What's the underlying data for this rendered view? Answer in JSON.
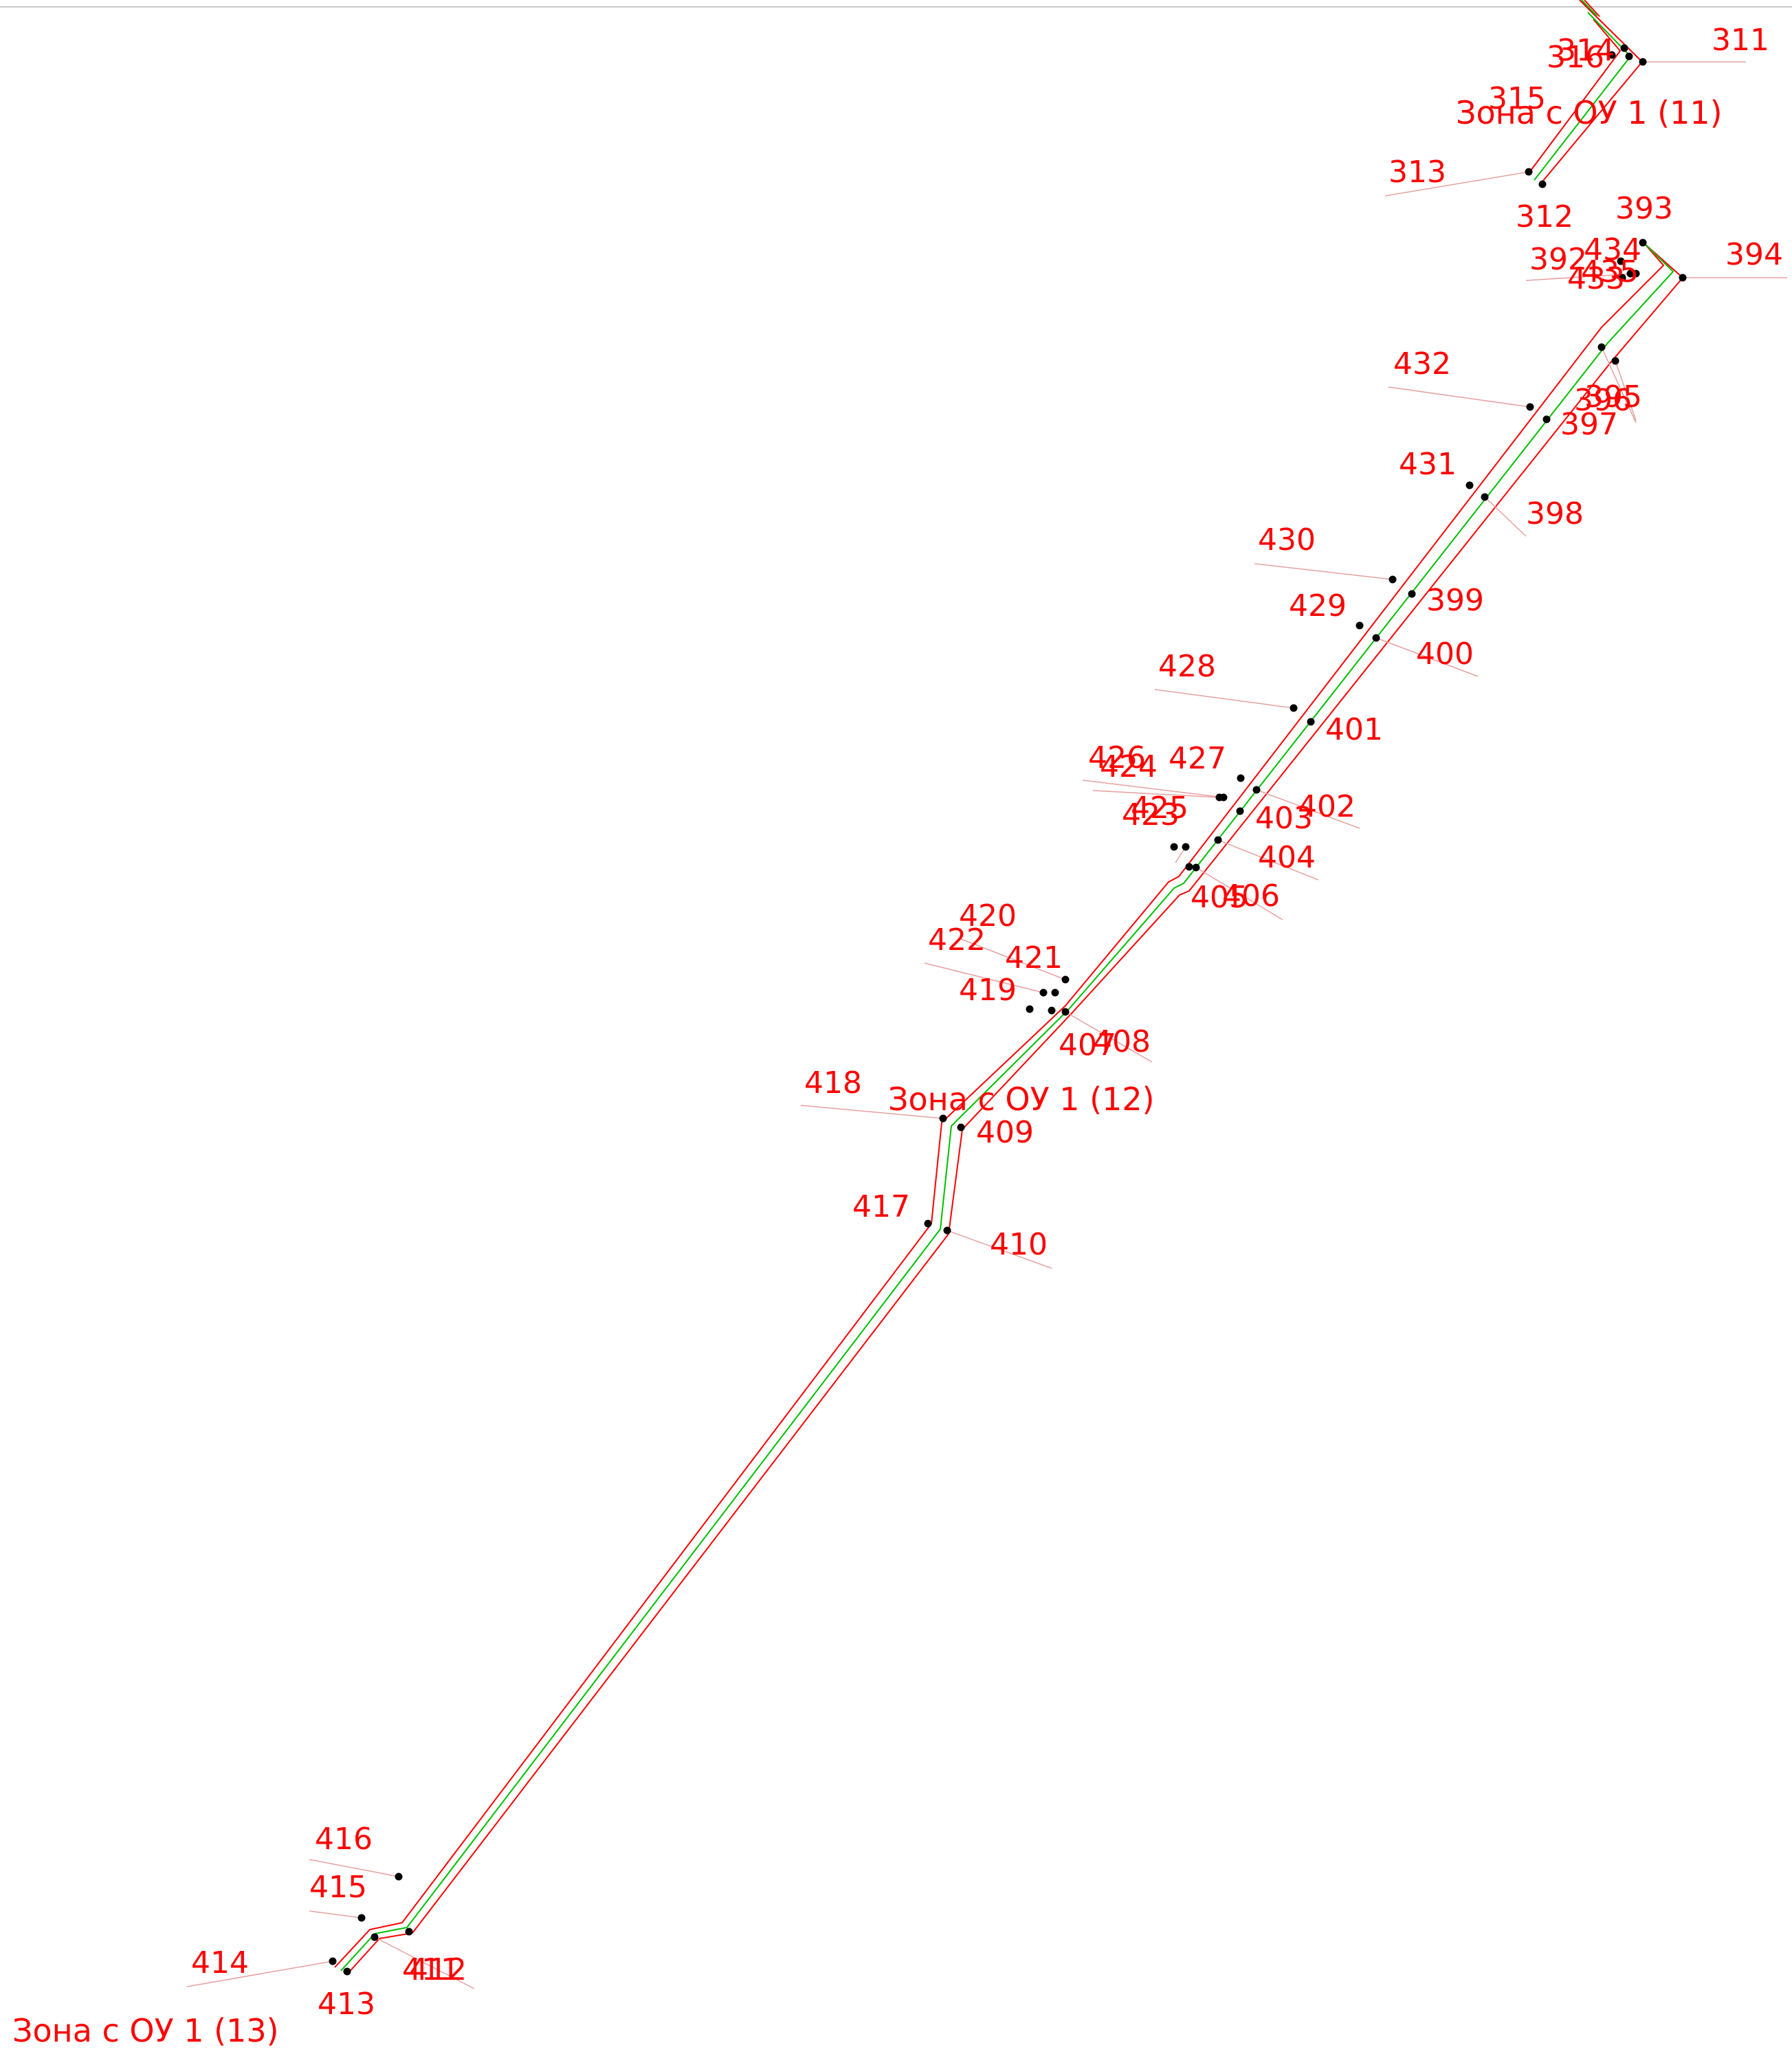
{
  "colors": {
    "boundary": "#ff0000",
    "axis": "#00c000",
    "label": "#ff0000",
    "leader": "#e8a0a0",
    "point": "#000000"
  },
  "zones": [
    {
      "id": "zone-11",
      "text": "Зона с ОУ 1 (11)"
    },
    {
      "id": "zone-12",
      "text": "Зона с ОУ 1 (12)"
    },
    {
      "id": "zone-13",
      "text": "Зона с ОУ 1 (13)"
    }
  ],
  "points": [
    {
      "id": "311"
    },
    {
      "id": "312"
    },
    {
      "id": "313"
    },
    {
      "id": "314"
    },
    {
      "id": "315"
    },
    {
      "id": "316"
    },
    {
      "id": "392"
    },
    {
      "id": "393"
    },
    {
      "id": "394"
    },
    {
      "id": "395"
    },
    {
      "id": "396"
    },
    {
      "id": "397"
    },
    {
      "id": "398"
    },
    {
      "id": "399"
    },
    {
      "id": "400"
    },
    {
      "id": "401"
    },
    {
      "id": "402"
    },
    {
      "id": "403"
    },
    {
      "id": "404"
    },
    {
      "id": "405"
    },
    {
      "id": "406"
    },
    {
      "id": "407"
    },
    {
      "id": "408"
    },
    {
      "id": "409"
    },
    {
      "id": "410"
    },
    {
      "id": "411"
    },
    {
      "id": "412"
    },
    {
      "id": "413"
    },
    {
      "id": "414"
    },
    {
      "id": "415"
    },
    {
      "id": "416"
    },
    {
      "id": "417"
    },
    {
      "id": "418"
    },
    {
      "id": "419"
    },
    {
      "id": "420"
    },
    {
      "id": "421"
    },
    {
      "id": "422"
    },
    {
      "id": "423"
    },
    {
      "id": "424"
    },
    {
      "id": "425"
    },
    {
      "id": "426"
    },
    {
      "id": "427"
    },
    {
      "id": "428"
    },
    {
      "id": "429"
    },
    {
      "id": "430"
    },
    {
      "id": "431"
    },
    {
      "id": "432"
    },
    {
      "id": "433"
    },
    {
      "id": "434"
    },
    {
      "id": "435"
    }
  ]
}
